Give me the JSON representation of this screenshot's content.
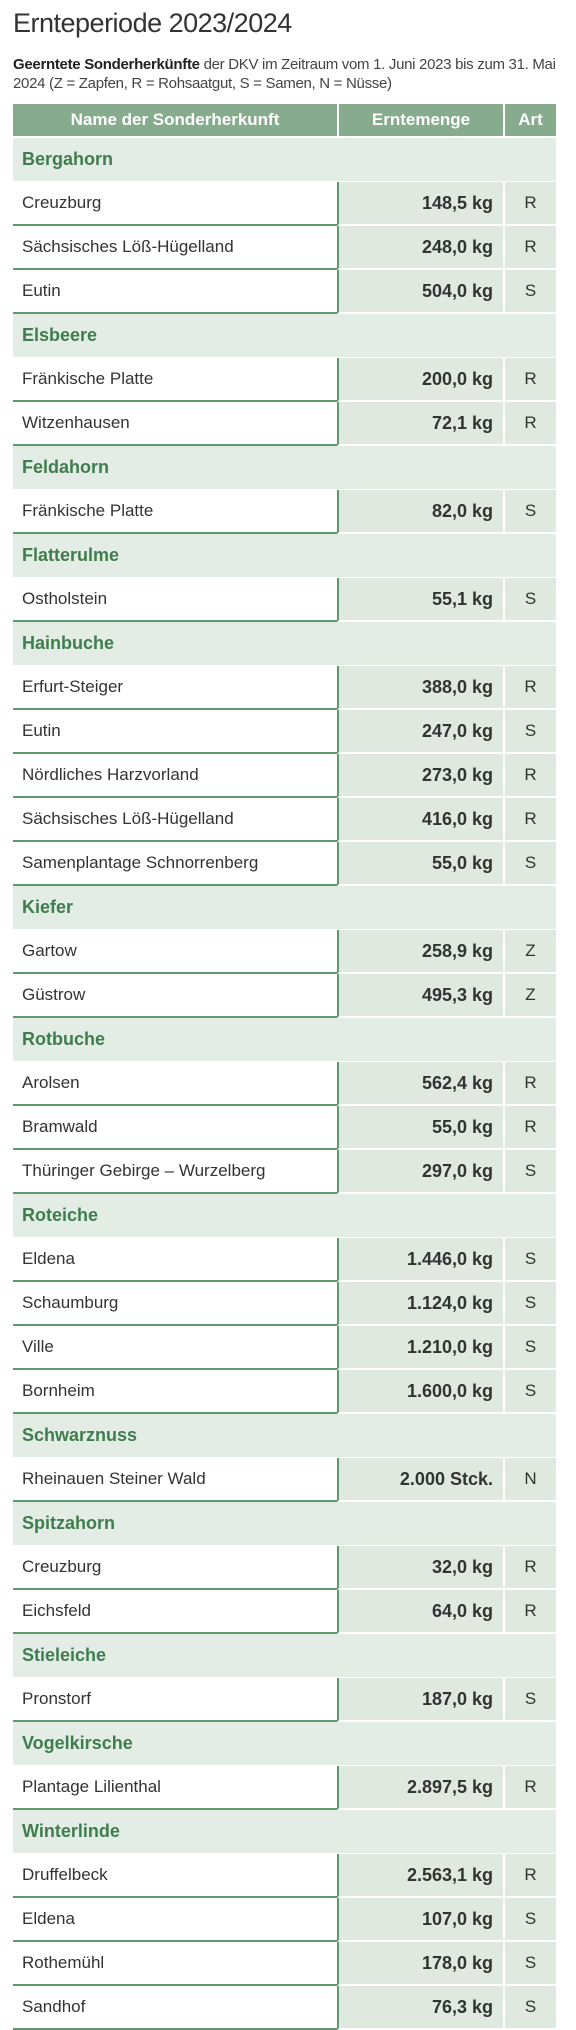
{
  "header": {
    "title": "Ernteperiode 2023/2024",
    "subtitle_bold": "Geerntete Sonderherkünfte",
    "subtitle": "der DKV im Zeitraum vom 1. Juni 2023 bis zum 31. Mai 2024 (Z = Zapfen, R = Rohsaatgut, S = Samen, N = Nüsse)"
  },
  "table": {
    "columns": [
      "Name der Sonderherkunft",
      "Erntemenge",
      "Art"
    ],
    "groups": [
      {
        "name": "Bergahorn",
        "rows": [
          [
            "Creuzburg",
            "148,5 kg",
            "R"
          ],
          [
            "Sächsisches Löß-Hügelland",
            "248,0 kg",
            "R"
          ],
          [
            "Eutin",
            "504,0 kg",
            "S"
          ]
        ]
      },
      {
        "name": "Elsbeere",
        "rows": [
          [
            "Fränkische Platte",
            "200,0 kg",
            "R"
          ],
          [
            "Witzenhausen",
            "72,1 kg",
            "R"
          ]
        ]
      },
      {
        "name": "Feldahorn",
        "rows": [
          [
            "Fränkische Platte",
            "82,0 kg",
            "S"
          ]
        ]
      },
      {
        "name": "Flatterulme",
        "rows": [
          [
            "Ostholstein",
            "55,1 kg",
            "S"
          ]
        ]
      },
      {
        "name": "Hainbuche",
        "rows": [
          [
            "Erfurt-Steiger",
            "388,0 kg",
            "R"
          ],
          [
            "Eutin",
            "247,0 kg",
            "S"
          ],
          [
            "Nördliches Harzvorland",
            "273,0 kg",
            "R"
          ],
          [
            "Sächsisches Löß-Hügelland",
            "416,0 kg",
            "R"
          ],
          [
            "Samenplantage Schnorrenberg",
            "55,0 kg",
            "S"
          ]
        ]
      },
      {
        "name": "Kiefer",
        "rows": [
          [
            "Gartow",
            "258,9 kg",
            "Z"
          ],
          [
            "Güstrow",
            "495,3 kg",
            "Z"
          ]
        ]
      },
      {
        "name": "Rotbuche",
        "rows": [
          [
            "Arolsen",
            "562,4 kg",
            "R"
          ],
          [
            "Bramwald",
            "55,0 kg",
            "R"
          ],
          [
            "Thüringer Gebirge – Wurzelberg",
            "297,0 kg",
            "S"
          ]
        ]
      },
      {
        "name": "Roteiche",
        "rows": [
          [
            "Eldena",
            "1.446,0 kg",
            "S"
          ],
          [
            "Schaumburg",
            "1.124,0 kg",
            "S"
          ],
          [
            "Ville",
            "1.210,0 kg",
            "S"
          ],
          [
            "Bornheim",
            "1.600,0 kg",
            "S"
          ]
        ]
      },
      {
        "name": "Schwarznuss",
        "rows": [
          [
            "Rheinauen Steiner Wald",
            "2.000 Stck.",
            "N"
          ]
        ]
      },
      {
        "name": "Spitzahorn",
        "rows": [
          [
            "Creuzburg",
            "32,0 kg",
            "R"
          ],
          [
            "Eichsfeld",
            "64,0 kg",
            "R"
          ]
        ]
      },
      {
        "name": "Stieleiche",
        "rows": [
          [
            "Pronstorf",
            "187,0 kg",
            "S"
          ]
        ]
      },
      {
        "name": "Vogelkirsche",
        "rows": [
          [
            "Plantage Lilienthal",
            "2.897,5 kg",
            "R"
          ]
        ]
      },
      {
        "name": "Winterlinde",
        "rows": [
          [
            "Druffelbeck",
            "2.563,1 kg",
            "R"
          ],
          [
            "Eldena",
            "107,0 kg",
            "S"
          ],
          [
            "Rothemühl",
            "178,0 kg",
            "S"
          ],
          [
            "Sandhof",
            "76,3 kg",
            "S"
          ]
        ]
      }
    ]
  }
}
